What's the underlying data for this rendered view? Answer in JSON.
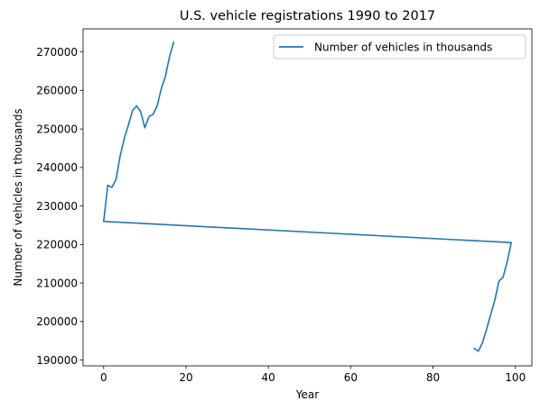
{
  "chart_data": {
    "type": "line",
    "title": "U.S. vehicle registrations 1990 to 2017",
    "xlabel": "Year",
    "ylabel": "Number of vehicles in thousands",
    "xlim": [
      -5,
      104
    ],
    "ylim": [
      188500,
      276000
    ],
    "xticks": [
      0,
      20,
      40,
      60,
      80,
      100
    ],
    "yticks": [
      190000,
      200000,
      210000,
      220000,
      230000,
      240000,
      250000,
      260000,
      270000
    ],
    "grid": false,
    "legend_position": "top-right",
    "series": [
      {
        "name": "Number of vehicles in thousands",
        "color": "#1f77b4",
        "x": [
          90,
          91,
          92,
          93,
          94,
          95,
          96,
          97,
          98,
          99,
          0,
          1,
          2,
          3,
          4,
          5,
          6,
          7,
          8,
          9,
          10,
          11,
          12,
          13,
          14,
          15,
          16,
          17
        ],
        "y": [
          193000,
          192300,
          194500,
          198000,
          201800,
          205500,
          210500,
          211500,
          215500,
          220500,
          226000,
          235400,
          234800,
          236900,
          243000,
          247500,
          251000,
          254800,
          256000,
          254500,
          250300,
          253200,
          253800,
          256000,
          260500,
          263700,
          268800,
          272500
        ]
      }
    ]
  }
}
